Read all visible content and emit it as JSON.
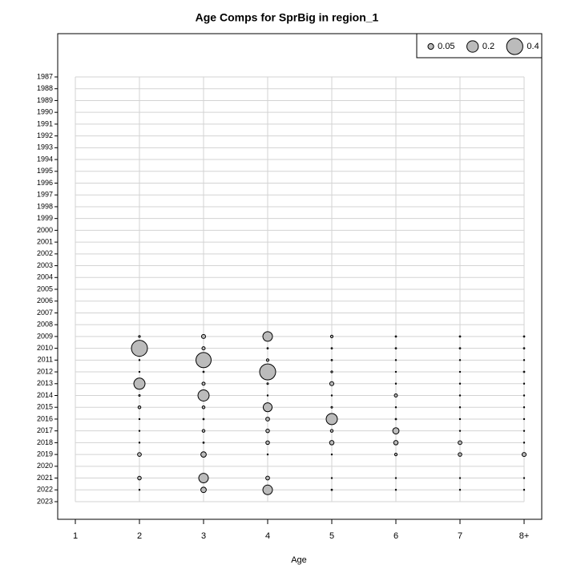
{
  "chart_data": {
    "type": "bubble",
    "title": "Age Comps for SprBig in region_1",
    "x_label": "Age",
    "categories": [
      "1",
      "2",
      "3",
      "4",
      "5",
      "6",
      "7",
      "8+"
    ],
    "y_categories": [
      "1987",
      "1988",
      "1989",
      "1990",
      "1991",
      "1992",
      "1993",
      "1994",
      "1995",
      "1996",
      "1997",
      "1998",
      "1999",
      "2000",
      "2001",
      "2002",
      "2003",
      "2004",
      "2005",
      "2006",
      "2007",
      "2008",
      "2009",
      "2010",
      "2011",
      "2012",
      "2013",
      "2014",
      "2015",
      "2016",
      "2017",
      "2018",
      "2019",
      "2020",
      "2021",
      "2022",
      "2023"
    ],
    "values": [
      [
        null,
        null,
        null,
        null,
        null,
        null,
        null,
        null
      ],
      [
        null,
        null,
        null,
        null,
        null,
        null,
        null,
        null
      ],
      [
        null,
        null,
        null,
        null,
        null,
        null,
        null,
        null
      ],
      [
        null,
        null,
        null,
        null,
        null,
        null,
        null,
        null
      ],
      [
        null,
        null,
        null,
        null,
        null,
        null,
        null,
        null
      ],
      [
        null,
        null,
        null,
        null,
        null,
        null,
        null,
        null
      ],
      [
        null,
        null,
        null,
        null,
        null,
        null,
        null,
        null
      ],
      [
        null,
        null,
        null,
        null,
        null,
        null,
        null,
        null
      ],
      [
        null,
        null,
        null,
        null,
        null,
        null,
        null,
        null
      ],
      [
        null,
        null,
        null,
        null,
        null,
        null,
        null,
        null
      ],
      [
        null,
        null,
        null,
        null,
        null,
        null,
        null,
        null
      ],
      [
        null,
        null,
        null,
        null,
        null,
        null,
        null,
        null
      ],
      [
        null,
        null,
        null,
        null,
        null,
        null,
        null,
        null
      ],
      [
        null,
        null,
        null,
        null,
        null,
        null,
        null,
        null
      ],
      [
        null,
        null,
        null,
        null,
        null,
        null,
        null,
        null
      ],
      [
        null,
        null,
        null,
        null,
        null,
        null,
        null,
        null
      ],
      [
        null,
        null,
        null,
        null,
        null,
        null,
        null,
        null
      ],
      [
        null,
        null,
        null,
        null,
        null,
        null,
        null,
        null
      ],
      [
        null,
        null,
        null,
        null,
        null,
        null,
        null,
        null
      ],
      [
        null,
        null,
        null,
        null,
        null,
        null,
        null,
        null
      ],
      [
        null,
        null,
        null,
        null,
        null,
        null,
        null,
        null
      ],
      [
        null,
        null,
        null,
        null,
        null,
        null,
        null,
        null
      ],
      [
        null,
        0.005,
        0.025,
        0.14,
        0.01,
        0.003,
        0.003,
        0.003
      ],
      [
        null,
        0.39,
        0.016,
        0.003,
        0.003,
        0.003,
        0.003,
        0.003
      ],
      [
        null,
        0.002,
        0.35,
        0.01,
        0.003,
        0.002,
        0.002,
        0.002
      ],
      [
        null,
        0.002,
        0.003,
        0.39,
        0.005,
        0.002,
        0.002,
        0.003
      ],
      [
        null,
        0.19,
        0.015,
        0.004,
        0.025,
        0.002,
        0.002,
        0.002
      ],
      [
        null,
        0.004,
        0.19,
        0.002,
        0.002,
        0.015,
        0.002,
        0.002
      ],
      [
        null,
        0.012,
        0.012,
        0.12,
        0.004,
        0.002,
        0.002,
        0.002
      ],
      [
        null,
        0.002,
        0.003,
        0.022,
        0.19,
        0.003,
        0.002,
        0.002
      ],
      [
        null,
        0.002,
        0.012,
        0.02,
        0.012,
        0.06,
        0.002,
        0.002
      ],
      [
        null,
        0.002,
        0.003,
        0.02,
        0.03,
        0.03,
        0.022,
        0.002
      ],
      [
        null,
        0.022,
        0.045,
        0.002,
        0.002,
        0.01,
        0.02,
        0.025
      ],
      [
        null,
        null,
        null,
        null,
        null,
        null,
        null,
        null
      ],
      [
        null,
        0.02,
        0.14,
        0.022,
        0.002,
        0.002,
        0.002,
        0.002
      ],
      [
        null,
        0.002,
        0.045,
        0.14,
        0.003,
        0.002,
        0.002,
        0.002
      ],
      [
        null,
        null,
        null,
        null,
        null,
        null,
        null,
        null
      ]
    ],
    "legend_sizes": [
      0.05,
      0.2,
      0.4
    ],
    "color": "#bbbbbb",
    "grid": true
  }
}
